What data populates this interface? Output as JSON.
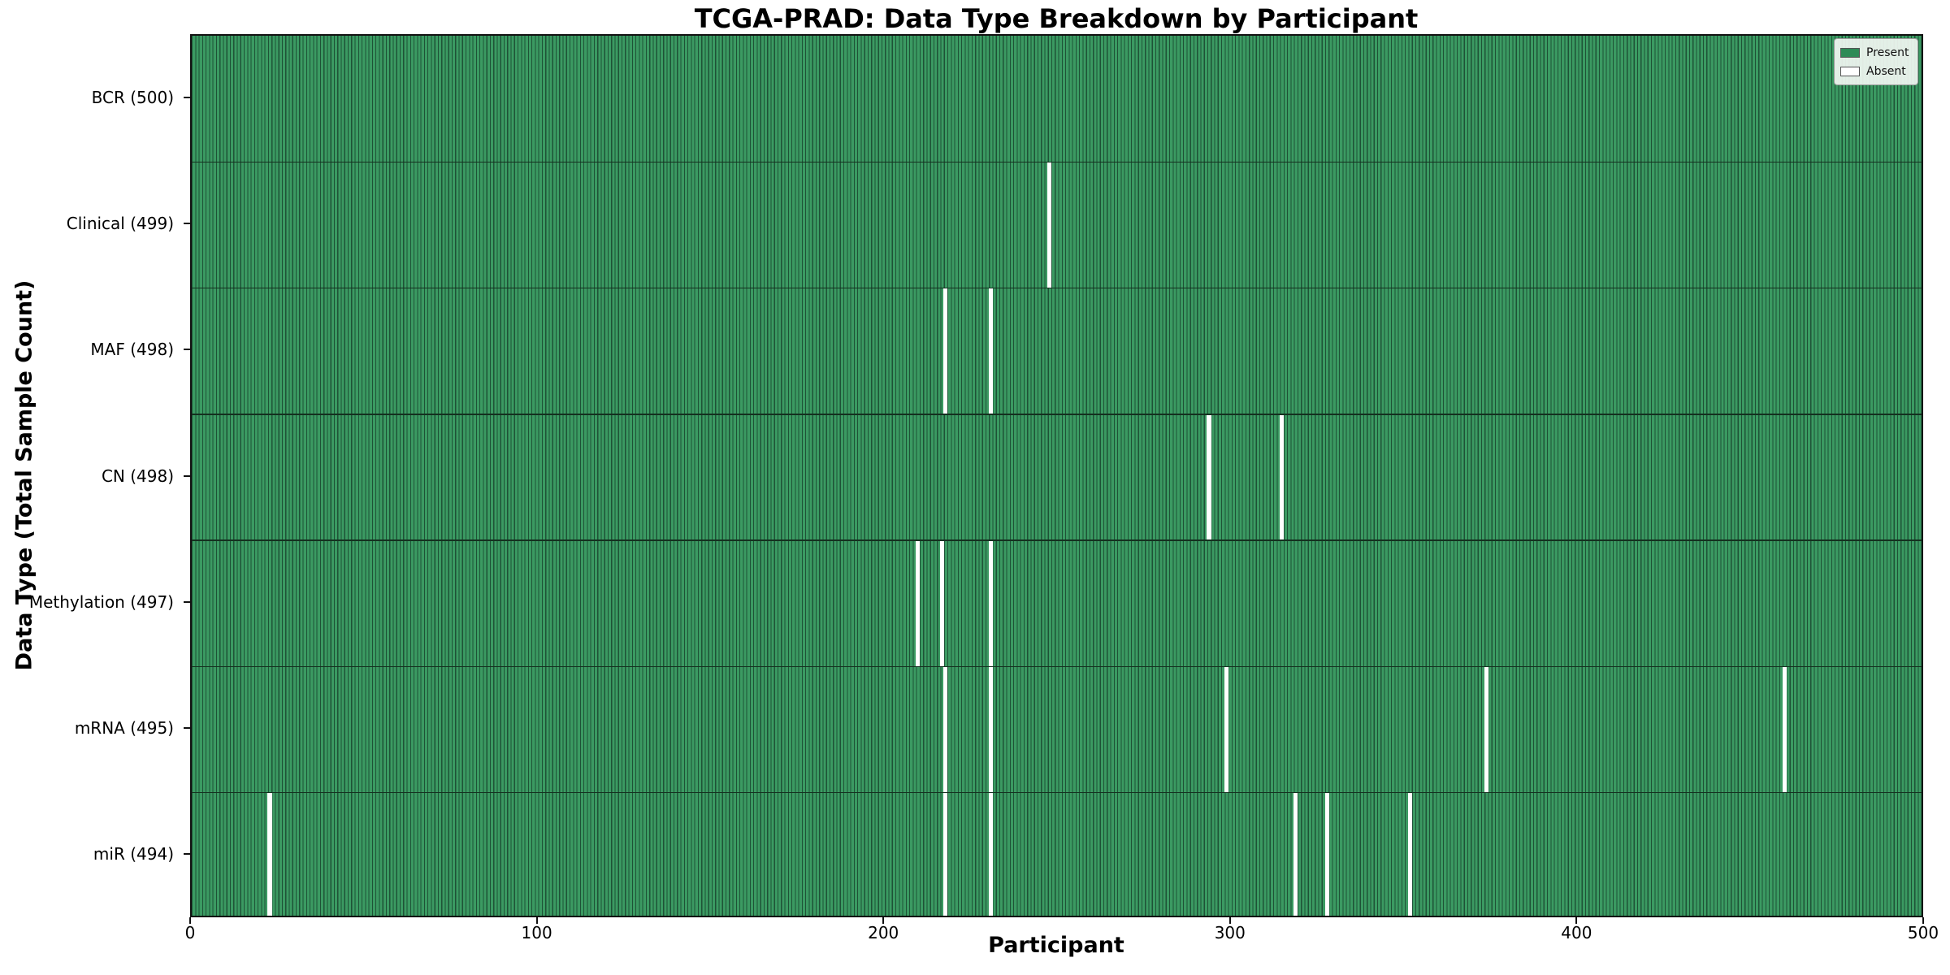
{
  "chart_data": {
    "type": "heatmap",
    "title": "TCGA-PRAD: Data Type Breakdown by Participant",
    "xlabel": "Participant",
    "ylabel": "Data Type (Total Sample Count)",
    "xlim": [
      0,
      500
    ],
    "x_ticks": [
      0,
      100,
      200,
      300,
      400,
      500
    ],
    "n_participants": 500,
    "grid": false,
    "rows": [
      {
        "name": "BCR",
        "label": "BCR (500)",
        "total": 500,
        "absent_participants": []
      },
      {
        "name": "Clinical",
        "label": "Clinical (499)",
        "total": 499,
        "absent_participants": [
          247
        ]
      },
      {
        "name": "MAF",
        "label": "MAF (498)",
        "total": 498,
        "absent_participants": [
          217,
          230
        ]
      },
      {
        "name": "CN",
        "label": "CN (498)",
        "total": 498,
        "absent_participants": [
          293,
          314
        ]
      },
      {
        "name": "Methylation",
        "label": "Methylation (497)",
        "total": 497,
        "absent_participants": [
          209,
          216,
          230
        ]
      },
      {
        "name": "mRNA",
        "label": "mRNA (495)",
        "total": 495,
        "absent_participants": [
          217,
          230,
          298,
          373,
          459
        ]
      },
      {
        "name": "miR",
        "label": "miR (494)",
        "total": 494,
        "absent_participants": [
          22,
          217,
          230,
          318,
          327,
          351
        ]
      }
    ],
    "legend": {
      "position": "upper right",
      "entries": [
        {
          "label": "Present",
          "color": "#2E8B57"
        },
        {
          "label": "Absent",
          "color": "#FFFFFF"
        }
      ]
    },
    "colors": {
      "present_fill": "#3B9A62",
      "present_edge": "#1E5236",
      "absent_fill": "#FFFFFF",
      "row_separator": "#14301F",
      "axis": "#111111"
    }
  }
}
